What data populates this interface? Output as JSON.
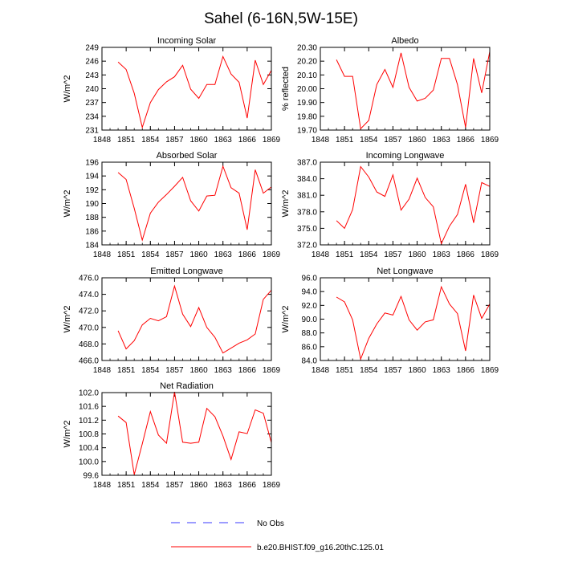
{
  "figure": {
    "title": "Sahel (6-16N,5W-15E)",
    "legend": [
      {
        "label": "No Obs",
        "color": "#3a3aff",
        "style": "dashed"
      },
      {
        "label": "b.e20.BHIST.f09_g16.20thC.125.01",
        "color": "#ff0000",
        "style": "solid"
      }
    ]
  },
  "chart_data": [
    {
      "type": "line",
      "title": "Incoming Solar",
      "ylabel": "W/m^2",
      "xlim": [
        1848,
        1869
      ],
      "ylim": [
        231,
        249
      ],
      "xticks": [
        "1848",
        "1851",
        "1854",
        "1857",
        "1860",
        "1863",
        "1866",
        "1869"
      ],
      "yticks": [
        "231",
        "234",
        "237",
        "240",
        "243",
        "246",
        "249"
      ],
      "x": [
        1850,
        1851,
        1852,
        1853,
        1854,
        1855,
        1856,
        1857,
        1858,
        1859,
        1860,
        1861,
        1862,
        1863,
        1864,
        1865,
        1866,
        1867,
        1868,
        1869
      ],
      "series": [
        {
          "color": "#ff0000",
          "values": [
            245.8,
            244.2,
            239.0,
            231.6,
            237.0,
            239.8,
            241.5,
            242.6,
            245.1,
            239.9,
            237.9,
            240.9,
            240.9,
            247.0,
            243.2,
            241.4,
            233.6,
            246.2,
            240.9,
            244.0
          ]
        }
      ]
    },
    {
      "type": "line",
      "title": "Albedo",
      "ylabel": "% reflected",
      "xlim": [
        1848,
        1869
      ],
      "ylim": [
        19.7,
        20.3
      ],
      "xticks": [
        "1848",
        "1851",
        "1854",
        "1857",
        "1860",
        "1863",
        "1866",
        "1869"
      ],
      "yticks": [
        "19.70",
        "19.80",
        "19.90",
        "20.00",
        "20.10",
        "20.20",
        "20.30"
      ],
      "x": [
        1850,
        1851,
        1852,
        1853,
        1854,
        1855,
        1856,
        1857,
        1858,
        1859,
        1860,
        1861,
        1862,
        1863,
        1864,
        1865,
        1866,
        1867,
        1868,
        1869
      ],
      "series": [
        {
          "color": "#ff0000",
          "values": [
            20.21,
            20.09,
            20.09,
            19.71,
            19.77,
            20.03,
            20.14,
            20.01,
            20.26,
            20.01,
            19.91,
            19.93,
            19.99,
            20.22,
            20.22,
            20.03,
            19.72,
            20.22,
            19.97,
            20.27
          ]
        }
      ]
    },
    {
      "type": "line",
      "title": "Absorbed Solar",
      "ylabel": "W/m^2",
      "xlim": [
        1848,
        1869
      ],
      "ylim": [
        184,
        196
      ],
      "xticks": [
        "1848",
        "1851",
        "1854",
        "1857",
        "1860",
        "1863",
        "1866",
        "1869"
      ],
      "yticks": [
        "184",
        "186",
        "188",
        "190",
        "192",
        "194",
        "196"
      ],
      "x": [
        1850,
        1851,
        1852,
        1853,
        1854,
        1855,
        1856,
        1857,
        1858,
        1859,
        1860,
        1861,
        1862,
        1863,
        1864,
        1865,
        1866,
        1867,
        1868,
        1869
      ],
      "series": [
        {
          "color": "#ff0000",
          "values": [
            194.5,
            193.5,
            189.3,
            184.7,
            188.6,
            190.2,
            191.3,
            192.5,
            193.8,
            190.4,
            188.9,
            191.1,
            191.2,
            195.4,
            192.3,
            191.5,
            186.2,
            194.9,
            191.5,
            192.4
          ]
        }
      ]
    },
    {
      "type": "line",
      "title": "Incoming Longwave",
      "ylabel": "W/m^2",
      "xlim": [
        1848,
        1869
      ],
      "ylim": [
        372.0,
        387.0
      ],
      "xticks": [
        "1848",
        "1851",
        "1854",
        "1857",
        "1860",
        "1863",
        "1866",
        "1869"
      ],
      "yticks": [
        "372.0",
        "375.0",
        "378.0",
        "381.0",
        "384.0",
        "387.0"
      ],
      "x": [
        1850,
        1851,
        1852,
        1853,
        1854,
        1855,
        1856,
        1857,
        1858,
        1859,
        1860,
        1861,
        1862,
        1863,
        1864,
        1865,
        1866,
        1867,
        1868,
        1869
      ],
      "series": [
        {
          "color": "#ff0000",
          "values": [
            376.4,
            375.0,
            378.4,
            386.2,
            384.3,
            381.6,
            380.8,
            384.7,
            378.3,
            380.3,
            384.1,
            380.6,
            378.9,
            372.2,
            375.4,
            377.5,
            383.0,
            376.0,
            383.3,
            382.6
          ]
        }
      ]
    },
    {
      "type": "line",
      "title": "Emitted Longwave",
      "ylabel": "W/m^2",
      "xlim": [
        1848,
        1869
      ],
      "ylim": [
        466.0,
        476.0
      ],
      "xticks": [
        "1848",
        "1851",
        "1854",
        "1857",
        "1860",
        "1863",
        "1866",
        "1869"
      ],
      "yticks": [
        "466.0",
        "468.0",
        "470.0",
        "472.0",
        "474.0",
        "476.0"
      ],
      "x": [
        1850,
        1851,
        1852,
        1853,
        1854,
        1855,
        1856,
        1857,
        1858,
        1859,
        1860,
        1861,
        1862,
        1863,
        1864,
        1865,
        1866,
        1867,
        1868,
        1869
      ],
      "series": [
        {
          "color": "#ff0000",
          "values": [
            469.6,
            467.4,
            468.4,
            470.3,
            471.1,
            470.8,
            471.3,
            475.0,
            471.6,
            470.1,
            472.4,
            470.0,
            468.8,
            466.9,
            467.5,
            468.1,
            468.5,
            469.2,
            473.4,
            474.5
          ]
        }
      ]
    },
    {
      "type": "line",
      "title": "Net Longwave",
      "ylabel": "W/m^2",
      "xlim": [
        1848,
        1869
      ],
      "ylim": [
        84.0,
        96.0
      ],
      "xticks": [
        "1848",
        "1851",
        "1854",
        "1857",
        "1860",
        "1863",
        "1866",
        "1869"
      ],
      "yticks": [
        "84.0",
        "86.0",
        "88.0",
        "90.0",
        "92.0",
        "94.0",
        "96.0"
      ],
      "x": [
        1850,
        1851,
        1852,
        1853,
        1854,
        1855,
        1856,
        1857,
        1858,
        1859,
        1860,
        1861,
        1862,
        1863,
        1864,
        1865,
        1866,
        1867,
        1868,
        1869
      ],
      "series": [
        {
          "color": "#ff0000",
          "values": [
            93.2,
            92.5,
            89.9,
            84.2,
            87.2,
            89.3,
            90.9,
            90.6,
            93.3,
            89.9,
            88.4,
            89.6,
            89.9,
            94.7,
            92.2,
            90.8,
            85.4,
            93.5,
            90.1,
            92.2
          ]
        }
      ]
    },
    {
      "type": "line",
      "title": "Net Radiation",
      "ylabel": "W/m^2",
      "xlim": [
        1848,
        1869
      ],
      "ylim": [
        99.6,
        102.0
      ],
      "xticks": [
        "1848",
        "1851",
        "1854",
        "1857",
        "1860",
        "1863",
        "1866",
        "1869"
      ],
      "yticks": [
        "99.6",
        "100.0",
        "100.4",
        "100.8",
        "101.2",
        "101.6",
        "102.0"
      ],
      "x": [
        1850,
        1851,
        1852,
        1853,
        1854,
        1855,
        1856,
        1857,
        1858,
        1859,
        1860,
        1861,
        1862,
        1863,
        1864,
        1865,
        1866,
        1867,
        1868,
        1869
      ],
      "series": [
        {
          "color": "#ff0000",
          "values": [
            101.32,
            101.13,
            99.62,
            100.51,
            101.45,
            100.77,
            100.53,
            102.02,
            100.56,
            100.53,
            100.56,
            101.54,
            101.3,
            100.74,
            100.06,
            100.86,
            100.81,
            101.5,
            101.4,
            100.55
          ]
        }
      ]
    }
  ]
}
